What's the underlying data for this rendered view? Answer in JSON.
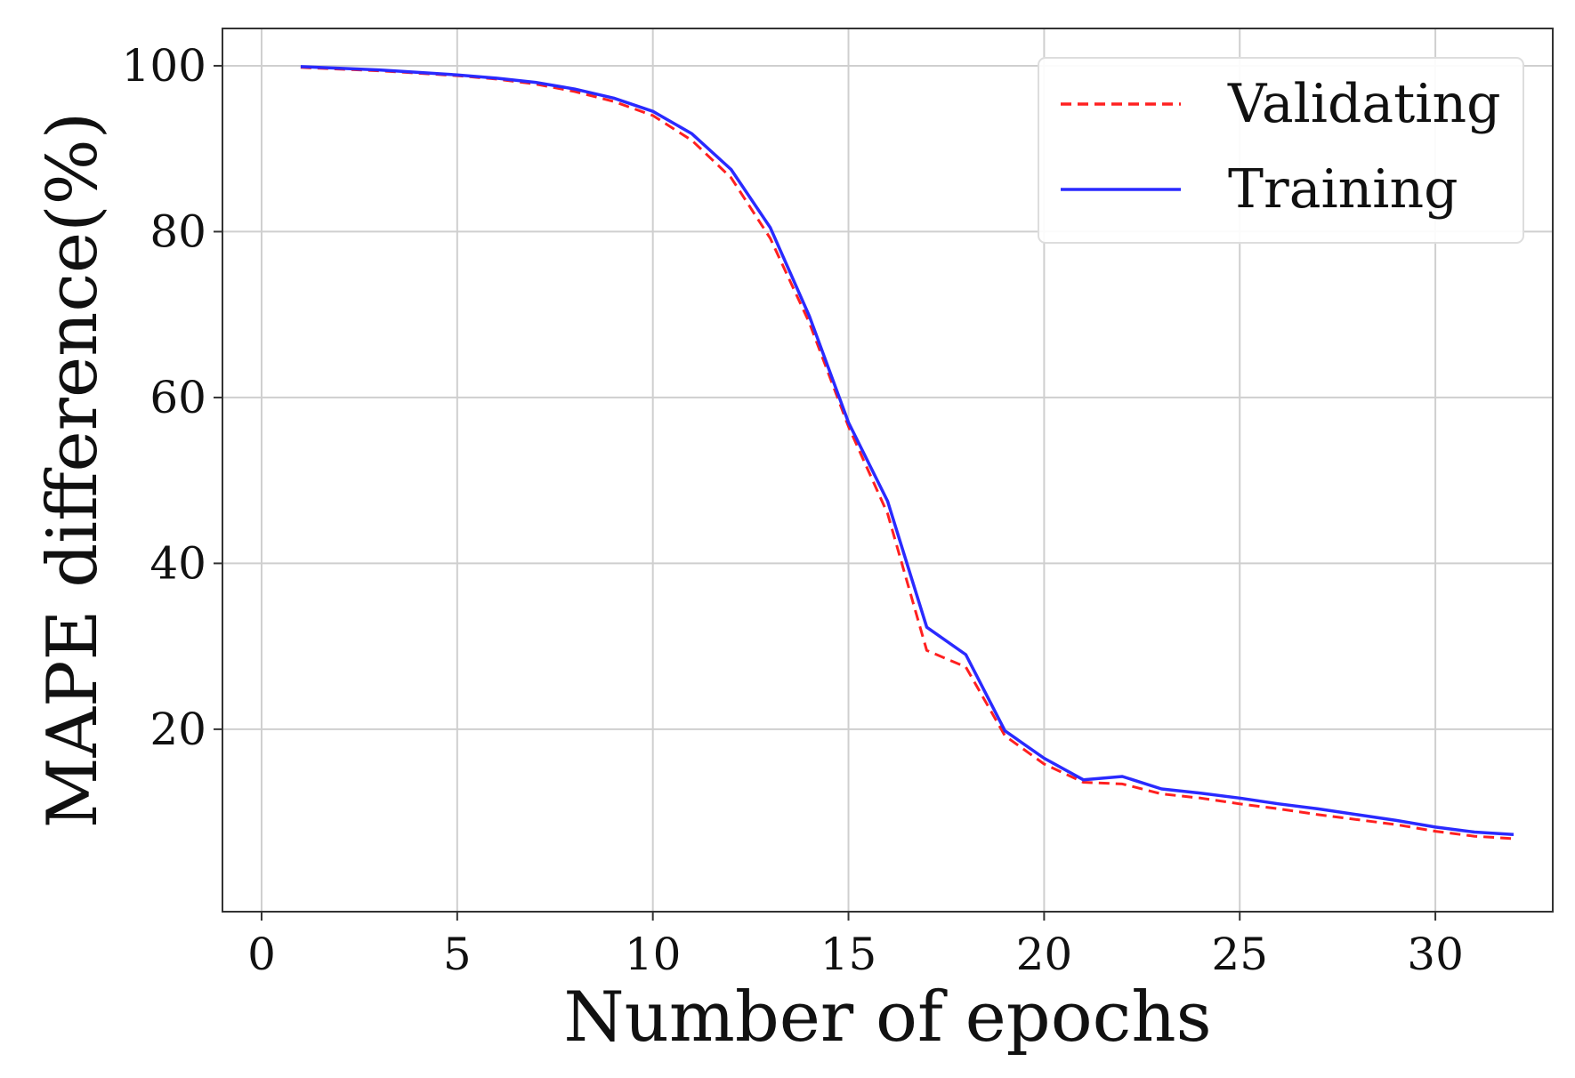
{
  "chart_data": {
    "type": "line",
    "title": "",
    "xlabel": "Number of epochs",
    "ylabel": "MAPE difference(%)",
    "xlim": [
      -1,
      33
    ],
    "ylim": [
      -2,
      104.5
    ],
    "x_ticks": [
      0,
      5,
      10,
      15,
      20,
      25,
      30
    ],
    "y_ticks": [
      20,
      40,
      60,
      80,
      100
    ],
    "grid": true,
    "legend_position": "top-right",
    "series": [
      {
        "name": "Validating",
        "color": "#ff2020",
        "line_style": "dashed",
        "x": [
          1,
          2,
          3,
          4,
          5,
          6,
          7,
          8,
          9,
          10,
          11,
          12,
          13,
          14,
          15,
          16,
          17,
          18,
          19,
          20,
          21,
          22,
          23,
          24,
          25,
          26,
          27,
          28,
          29,
          30,
          31,
          32
        ],
        "y": [
          99.8,
          99.6,
          99.4,
          99.1,
          98.8,
          98.4,
          97.8,
          96.9,
          95.7,
          94.0,
          91.0,
          86.5,
          79.2,
          69.0,
          56.5,
          46.0,
          29.5,
          27.5,
          19.2,
          15.8,
          13.6,
          13.4,
          12.2,
          11.7,
          11.0,
          10.4,
          9.7,
          9.1,
          8.5,
          7.7,
          7.1,
          6.8
        ]
      },
      {
        "name": "Training",
        "color": "#2a2aff",
        "line_style": "solid",
        "x": [
          1,
          2,
          3,
          4,
          5,
          6,
          7,
          8,
          9,
          10,
          11,
          12,
          13,
          14,
          15,
          16,
          17,
          18,
          19,
          20,
          21,
          22,
          23,
          24,
          25,
          26,
          27,
          28,
          29,
          30,
          31,
          32
        ],
        "y": [
          99.9,
          99.7,
          99.5,
          99.2,
          98.9,
          98.5,
          98.0,
          97.2,
          96.1,
          94.5,
          91.8,
          87.5,
          80.5,
          69.8,
          57.0,
          47.5,
          32.3,
          29.0,
          19.8,
          16.5,
          13.9,
          14.3,
          12.8,
          12.3,
          11.7,
          11.0,
          10.4,
          9.7,
          9.0,
          8.2,
          7.6,
          7.3
        ]
      }
    ]
  },
  "colors": {
    "grid": "#cfcfcf",
    "frame": "#333333",
    "text": "#111111",
    "legend_border": "#dddddd"
  }
}
